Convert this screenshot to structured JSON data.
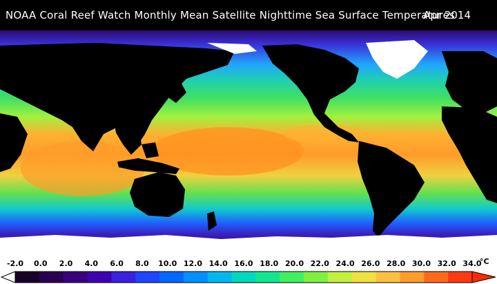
{
  "header": {
    "title": "NOAA Coral Reef Watch Monthly Mean Satellite Nighttime Sea Surface Temperatures",
    "date": "Apr 2014"
  },
  "colorbar": {
    "unit": "°C",
    "tick_labels": [
      "-2.0",
      "0.0",
      "2.0",
      "4.0",
      "6.0",
      "8.0",
      "10.0",
      "12.0",
      "14.0",
      "16.0",
      "18.0",
      "20.0",
      "22.0",
      "24.0",
      "26.0",
      "28.0",
      "30.0",
      "32.0",
      "34.0"
    ],
    "colors": [
      "#1a0028",
      "#2a0050",
      "#3a0080",
      "#3f00b0",
      "#3a20e0",
      "#1f45ff",
      "#0068ff",
      "#0090ff",
      "#00b8f0",
      "#00d8c0",
      "#10e890",
      "#40f060",
      "#80f040",
      "#c0f040",
      "#f0e040",
      "#ffc040",
      "#ff9c2a",
      "#ff6a1a",
      "#ff3a10"
    ]
  },
  "map": {
    "legend_range": [
      -2,
      34
    ],
    "colors": {
      "land": "#000000",
      "ice": "#ffffff",
      "polar": "#2a0a6e",
      "cold": "#3a2fd8",
      "cool": "#1fa6ff",
      "mild": "#20d0b0",
      "warm_temperate": "#40e060",
      "warm": "#a0f040",
      "tropical": "#ffb030",
      "hot": "#ff8a20"
    }
  }
}
